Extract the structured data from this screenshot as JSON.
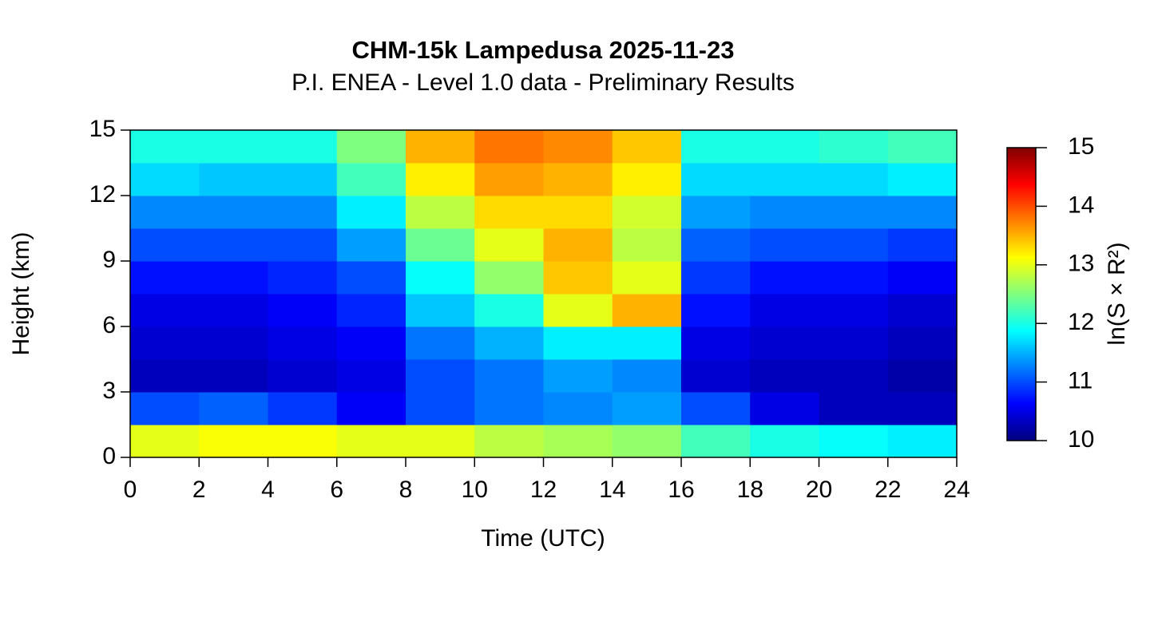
{
  "chart_data": {
    "type": "heatmap",
    "title": "CHM-15k Lampedusa 2025-11-23",
    "subtitle": "P.I. ENEA - Level 1.0 data - Preliminary Results",
    "x_label": "Time (UTC)",
    "y_label": "Height (km)",
    "colorbar_label": "ln(S × R²)",
    "xbins": [
      0,
      2,
      4,
      6,
      8,
      10,
      12,
      14,
      16,
      18,
      20,
      22,
      24
    ],
    "ybins": [
      0,
      1.5,
      3,
      4.5,
      6,
      7.5,
      9,
      10.5,
      12,
      13.5,
      15
    ],
    "values": [
      [
        13.0,
        13.1,
        13.1,
        13.0,
        13.0,
        12.8,
        12.7,
        12.6,
        12.2,
        12.0,
        11.9,
        11.8
      ],
      [
        11.0,
        11.1,
        10.9,
        10.6,
        11.0,
        11.2,
        11.3,
        11.4,
        11.0,
        10.5,
        10.3,
        10.3
      ],
      [
        10.3,
        10.3,
        10.4,
        10.5,
        11.0,
        11.2,
        11.4,
        11.3,
        10.4,
        10.3,
        10.3,
        10.2
      ],
      [
        10.4,
        10.4,
        10.5,
        10.6,
        11.2,
        11.5,
        11.8,
        11.8,
        10.5,
        10.4,
        10.4,
        10.3
      ],
      [
        10.5,
        10.5,
        10.6,
        10.8,
        11.6,
        12.0,
        13.0,
        13.5,
        10.7,
        10.5,
        10.5,
        10.4
      ],
      [
        10.7,
        10.7,
        10.8,
        11.0,
        11.9,
        12.6,
        13.4,
        13.0,
        10.9,
        10.7,
        10.7,
        10.6
      ],
      [
        11.0,
        11.0,
        11.0,
        11.4,
        12.4,
        13.0,
        13.5,
        12.8,
        11.1,
        11.0,
        11.0,
        10.9
      ],
      [
        11.3,
        11.3,
        11.3,
        11.8,
        12.8,
        13.3,
        13.3,
        12.9,
        11.4,
        11.3,
        11.3,
        11.3
      ],
      [
        11.7,
        11.6,
        11.6,
        12.2,
        13.2,
        13.6,
        13.5,
        13.2,
        11.7,
        11.7,
        11.7,
        11.8
      ],
      [
        12.0,
        12.0,
        12.0,
        12.5,
        13.5,
        13.8,
        13.7,
        13.4,
        12.0,
        12.0,
        12.1,
        12.2
      ]
    ],
    "xlim": [
      0,
      24
    ],
    "xticks": [
      0,
      2,
      4,
      6,
      8,
      10,
      12,
      14,
      16,
      18,
      20,
      22,
      24
    ],
    "ylim": [
      0,
      15
    ],
    "yticks": [
      0,
      3,
      6,
      9,
      12,
      15
    ],
    "clim": [
      10,
      15
    ],
    "cticks": [
      10,
      11,
      12,
      13,
      14,
      15
    ],
    "colormap": [
      "#00007f",
      "#0000ff",
      "#007fff",
      "#00ffff",
      "#7fff7f",
      "#ffff00",
      "#ff7f00",
      "#ff0000",
      "#7f0000"
    ]
  }
}
